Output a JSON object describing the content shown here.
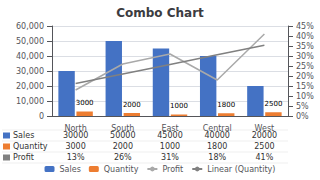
{
  "chart_data": {
    "type": "bar",
    "title": "Combo Chart",
    "categories": [
      "North",
      "South",
      "East",
      "Central",
      "West"
    ],
    "series": [
      {
        "name": "Sales",
        "type": "bar",
        "color": "#4472C4",
        "values": [
          30000,
          50000,
          45000,
          40000,
          20000
        ]
      },
      {
        "name": "Quantity",
        "type": "bar",
        "color": "#ED7D31",
        "values": [
          3000,
          2000,
          1000,
          1800,
          2500
        ],
        "data_labels": true
      },
      {
        "name": "Profit",
        "type": "line",
        "axis": "y2",
        "color": "#A9A9A9",
        "values": [
          0.13,
          0.26,
          0.31,
          0.18,
          0.41
        ]
      },
      {
        "name": "Linear (Quantity)",
        "type": "line",
        "axis": "y2",
        "color": "#808080",
        "values": [
          0.162,
          0.21,
          0.258,
          0.306,
          0.354
        ]
      }
    ],
    "ylim": [
      0,
      60000
    ],
    "yticks": [
      0,
      {
        "value": 10000,
        "label": "10,000"
      },
      {
        "value": 20000,
        "label": "20,000"
      },
      {
        "value": 30000,
        "label": "30,000"
      },
      {
        "value": 40000,
        "label": "40,000"
      },
      {
        "value": 50000,
        "label": "50,000"
      },
      {
        "value": 60000,
        "label": "60,000"
      }
    ],
    "y2lim": [
      0,
      0.45
    ],
    "y2ticks": [
      {
        "value": 0.0,
        "label": "0%"
      },
      {
        "value": 0.05,
        "label": "5%"
      },
      {
        "value": 0.1,
        "label": "10%"
      },
      {
        "value": 0.15,
        "label": "15%"
      },
      {
        "value": 0.2,
        "label": "20%"
      },
      {
        "value": 0.25,
        "label": "25%"
      },
      {
        "value": 0.3,
        "label": "30%"
      },
      {
        "value": 0.35,
        "label": "35%"
      },
      {
        "value": 0.4,
        "label": "40%"
      },
      {
        "value": 0.45,
        "label": "45%"
      }
    ],
    "grid": true,
    "legend": "bottom",
    "table": {
      "rows": [
        "Sales",
        "Quantity",
        "Profit"
      ],
      "colors": [
        "#4472C4",
        "#ED7D31",
        "#808080"
      ],
      "cells": [
        [
          "30000",
          "50000",
          "45000",
          "40000",
          "20000"
        ],
        [
          "3000",
          "2000",
          "1000",
          "1800",
          "2500"
        ],
        [
          "13%",
          "26%",
          "31%",
          "18%",
          "41%"
        ]
      ]
    }
  }
}
